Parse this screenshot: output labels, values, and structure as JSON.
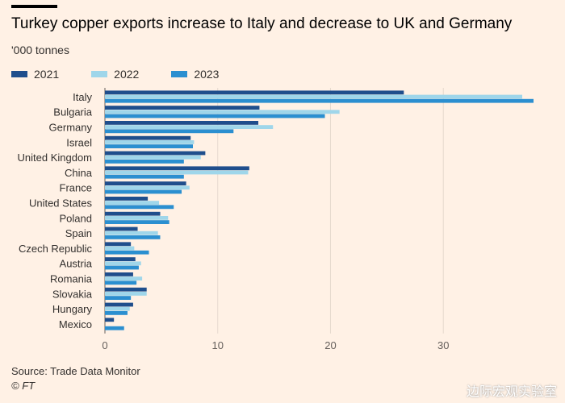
{
  "header": {
    "title": "Turkey copper exports increase to Italy and decrease to UK and Germany",
    "subtitle": "'000 tonnes"
  },
  "legend": [
    {
      "label": "2021",
      "color": "#1f4e8c"
    },
    {
      "label": "2022",
      "color": "#9fd6ea"
    },
    {
      "label": "2023",
      "color": "#2b8fd0"
    }
  ],
  "footer": {
    "source": "Source: Trade Data Monitor",
    "brand": "© FT",
    "watermark": "边际宏观实验室"
  },
  "chart_data": {
    "type": "bar",
    "orientation": "horizontal",
    "categories": [
      "Italy",
      "Bulgaria",
      "Germany",
      "Israel",
      "United Kingdom",
      "China",
      "France",
      "United States",
      "Poland",
      "Spain",
      "Czech Republic",
      "Austria",
      "Romania",
      "Slovakia",
      "Hungary",
      "Mexico"
    ],
    "series": [
      {
        "name": "2021",
        "color": "#1f4e8c",
        "values": [
          26.5,
          13.7,
          13.6,
          7.6,
          8.9,
          12.8,
          7.2,
          3.8,
          4.9,
          2.9,
          2.3,
          2.7,
          2.5,
          3.7,
          2.5,
          0.8
        ]
      },
      {
        "name": "2022",
        "color": "#9fd6ea",
        "values": [
          37.0,
          20.8,
          14.9,
          7.9,
          8.5,
          12.7,
          7.5,
          4.8,
          5.6,
          4.7,
          2.6,
          3.2,
          3.3,
          3.7,
          2.2,
          0.0
        ]
      },
      {
        "name": "2023",
        "color": "#2b8fd0",
        "values": [
          38.0,
          19.5,
          11.4,
          7.8,
          7.0,
          7.0,
          6.8,
          6.1,
          5.7,
          4.9,
          3.9,
          3.0,
          2.8,
          2.3,
          2.0,
          1.7
        ]
      }
    ],
    "xlim": [
      0,
      38.5
    ],
    "xticks": [
      "0",
      "10",
      "20",
      "30"
    ],
    "grid": true,
    "legend_position": "top-left"
  }
}
